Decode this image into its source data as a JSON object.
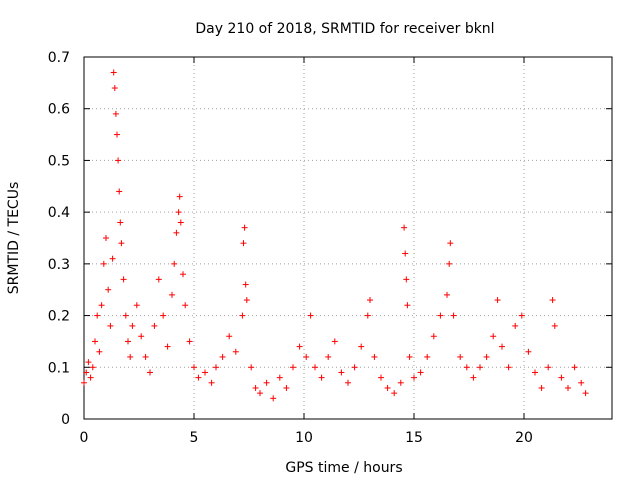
{
  "chart_data": {
    "type": "scatter",
    "title": "Day 210 of 2018, SRMTID for receiver bknl",
    "xlabel": "GPS time / hours",
    "ylabel": "SRMTID / TECUs",
    "xlim": [
      0,
      24
    ],
    "ylim": [
      0,
      0.7
    ],
    "xticks": [
      0,
      5,
      10,
      15,
      20
    ],
    "yticks": [
      0,
      0.1,
      0.2,
      0.3,
      0.4,
      0.5,
      0.6,
      0.7
    ],
    "xtick_labels": [
      "0",
      "5",
      "10",
      "15",
      "20"
    ],
    "ytick_labels": [
      "0",
      "0.1",
      "0.2",
      "0.3",
      "0.4",
      "0.5",
      "0.6",
      "0.7"
    ],
    "grid": true,
    "marker": "+",
    "color": "#ff0000",
    "series": [
      {
        "name": "SRMTID",
        "points": [
          [
            0.0,
            0.07
          ],
          [
            0.1,
            0.09
          ],
          [
            0.2,
            0.11
          ],
          [
            0.3,
            0.08
          ],
          [
            0.4,
            0.1
          ],
          [
            0.5,
            0.15
          ],
          [
            0.6,
            0.2
          ],
          [
            0.7,
            0.13
          ],
          [
            0.8,
            0.22
          ],
          [
            0.9,
            0.3
          ],
          [
            1.0,
            0.35
          ],
          [
            1.1,
            0.25
          ],
          [
            1.2,
            0.18
          ],
          [
            1.3,
            0.31
          ],
          [
            1.35,
            0.67
          ],
          [
            1.4,
            0.64
          ],
          [
            1.45,
            0.59
          ],
          [
            1.5,
            0.55
          ],
          [
            1.55,
            0.5
          ],
          [
            1.6,
            0.44
          ],
          [
            1.65,
            0.38
          ],
          [
            1.7,
            0.34
          ],
          [
            1.8,
            0.27
          ],
          [
            1.9,
            0.2
          ],
          [
            2.0,
            0.15
          ],
          [
            2.1,
            0.12
          ],
          [
            2.2,
            0.18
          ],
          [
            2.4,
            0.22
          ],
          [
            2.6,
            0.16
          ],
          [
            2.8,
            0.12
          ],
          [
            3.0,
            0.09
          ],
          [
            3.2,
            0.18
          ],
          [
            3.4,
            0.27
          ],
          [
            3.6,
            0.2
          ],
          [
            3.8,
            0.14
          ],
          [
            4.0,
            0.24
          ],
          [
            4.1,
            0.3
          ],
          [
            4.2,
            0.36
          ],
          [
            4.3,
            0.4
          ],
          [
            4.35,
            0.43
          ],
          [
            4.4,
            0.38
          ],
          [
            4.5,
            0.28
          ],
          [
            4.6,
            0.22
          ],
          [
            4.8,
            0.15
          ],
          [
            5.0,
            0.1
          ],
          [
            5.2,
            0.08
          ],
          [
            5.5,
            0.09
          ],
          [
            5.8,
            0.07
          ],
          [
            6.0,
            0.1
          ],
          [
            6.3,
            0.12
          ],
          [
            6.6,
            0.16
          ],
          [
            6.9,
            0.13
          ],
          [
            7.2,
            0.2
          ],
          [
            7.25,
            0.34
          ],
          [
            7.3,
            0.37
          ],
          [
            7.35,
            0.26
          ],
          [
            7.4,
            0.23
          ],
          [
            7.6,
            0.1
          ],
          [
            7.8,
            0.06
          ],
          [
            8.0,
            0.05
          ],
          [
            8.3,
            0.07
          ],
          [
            8.6,
            0.04
          ],
          [
            8.9,
            0.08
          ],
          [
            9.2,
            0.06
          ],
          [
            9.5,
            0.1
          ],
          [
            9.8,
            0.14
          ],
          [
            10.1,
            0.12
          ],
          [
            10.3,
            0.2
          ],
          [
            10.5,
            0.1
          ],
          [
            10.8,
            0.08
          ],
          [
            11.1,
            0.12
          ],
          [
            11.4,
            0.15
          ],
          [
            11.7,
            0.09
          ],
          [
            12.0,
            0.07
          ],
          [
            12.3,
            0.1
          ],
          [
            12.6,
            0.14
          ],
          [
            12.9,
            0.2
          ],
          [
            13.0,
            0.23
          ],
          [
            13.2,
            0.12
          ],
          [
            13.5,
            0.08
          ],
          [
            13.8,
            0.06
          ],
          [
            14.1,
            0.05
          ],
          [
            14.4,
            0.07
          ],
          [
            14.55,
            0.37
          ],
          [
            14.6,
            0.32
          ],
          [
            14.65,
            0.27
          ],
          [
            14.7,
            0.22
          ],
          [
            14.8,
            0.12
          ],
          [
            15.0,
            0.08
          ],
          [
            15.3,
            0.09
          ],
          [
            15.6,
            0.12
          ],
          [
            15.9,
            0.16
          ],
          [
            16.2,
            0.2
          ],
          [
            16.5,
            0.24
          ],
          [
            16.6,
            0.3
          ],
          [
            16.65,
            0.34
          ],
          [
            16.8,
            0.2
          ],
          [
            17.1,
            0.12
          ],
          [
            17.4,
            0.1
          ],
          [
            17.7,
            0.08
          ],
          [
            18.0,
            0.1
          ],
          [
            18.3,
            0.12
          ],
          [
            18.6,
            0.16
          ],
          [
            18.8,
            0.23
          ],
          [
            19.0,
            0.14
          ],
          [
            19.3,
            0.1
          ],
          [
            19.6,
            0.18
          ],
          [
            19.9,
            0.2
          ],
          [
            20.2,
            0.13
          ],
          [
            20.5,
            0.09
          ],
          [
            20.8,
            0.06
          ],
          [
            21.1,
            0.1
          ],
          [
            21.3,
            0.23
          ],
          [
            21.4,
            0.18
          ],
          [
            21.7,
            0.08
          ],
          [
            22.0,
            0.06
          ],
          [
            22.3,
            0.1
          ],
          [
            22.6,
            0.07
          ],
          [
            22.8,
            0.05
          ]
        ]
      }
    ]
  }
}
